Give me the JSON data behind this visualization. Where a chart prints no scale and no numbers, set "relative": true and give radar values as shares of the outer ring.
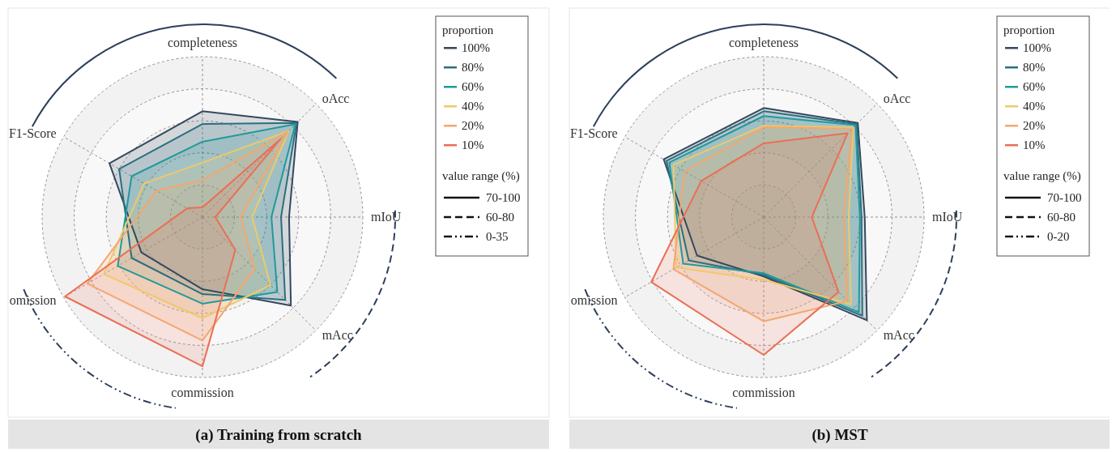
{
  "chart_data": [
    {
      "type": "radar",
      "title": "(a) Training from scratch",
      "relative": true,
      "legend": "right",
      "legend_title": "proportion",
      "categories": [
        "completeness",
        "oAcc",
        "mIoU",
        "mAcc",
        "commission",
        "omission",
        "F1-Score"
      ],
      "series": [
        {
          "name": "100%",
          "color": "#34495e",
          "values": [
            0.66,
            0.84,
            0.54,
            0.78,
            0.45,
            0.44,
            0.67
          ]
        },
        {
          "name": "80%",
          "color": "#2b6f80",
          "values": [
            0.58,
            0.83,
            0.49,
            0.73,
            0.48,
            0.51,
            0.6
          ]
        },
        {
          "name": "60%",
          "color": "#21999a",
          "values": [
            0.47,
            0.82,
            0.43,
            0.66,
            0.54,
            0.61,
            0.51
          ]
        },
        {
          "name": "40%",
          "color": "#efc96a",
          "values": [
            0.34,
            0.76,
            0.31,
            0.6,
            0.63,
            0.71,
            0.42
          ]
        },
        {
          "name": "20%",
          "color": "#f5a66e",
          "values": [
            0.23,
            0.75,
            0.24,
            0.46,
            0.77,
            0.83,
            0.33
          ]
        },
        {
          "name": "10%",
          "color": "#ea6f55",
          "values": [
            0.06,
            0.69,
            0.08,
            0.29,
            0.93,
            0.99,
            0.11
          ]
        }
      ],
      "annotations": [
        "value range (%)",
        "70-100",
        "60-80",
        "0-35"
      ]
    },
    {
      "type": "radar",
      "title": "(b) MST",
      "relative": true,
      "legend": "right",
      "legend_title": "proportion",
      "categories": [
        "completeness",
        "oAcc",
        "mIoU",
        "mAcc",
        "commission",
        "omission",
        "F1-Score"
      ],
      "series": [
        {
          "name": "100%",
          "color": "#34495e",
          "values": [
            0.68,
            0.83,
            0.63,
            0.91,
            0.37,
            0.48,
            0.72
          ]
        },
        {
          "name": "80%",
          "color": "#2b6f80",
          "values": [
            0.66,
            0.82,
            0.61,
            0.87,
            0.36,
            0.54,
            0.7
          ]
        },
        {
          "name": "60%",
          "color": "#21999a",
          "values": [
            0.63,
            0.81,
            0.6,
            0.84,
            0.35,
            0.58,
            0.68
          ]
        },
        {
          "name": "40%",
          "color": "#efc96a",
          "values": [
            0.57,
            0.79,
            0.53,
            0.77,
            0.39,
            0.63,
            0.65
          ]
        },
        {
          "name": "20%",
          "color": "#f5a66e",
          "values": [
            0.56,
            0.78,
            0.5,
            0.74,
            0.65,
            0.65,
            0.57
          ]
        },
        {
          "name": "10%",
          "color": "#ea6f55",
          "values": [
            0.46,
            0.74,
            0.3,
            0.66,
            0.86,
            0.81,
            0.45
          ]
        }
      ],
      "annotations": [
        "value range (%)",
        "70-100",
        "60-80",
        "0-20"
      ]
    }
  ]
}
